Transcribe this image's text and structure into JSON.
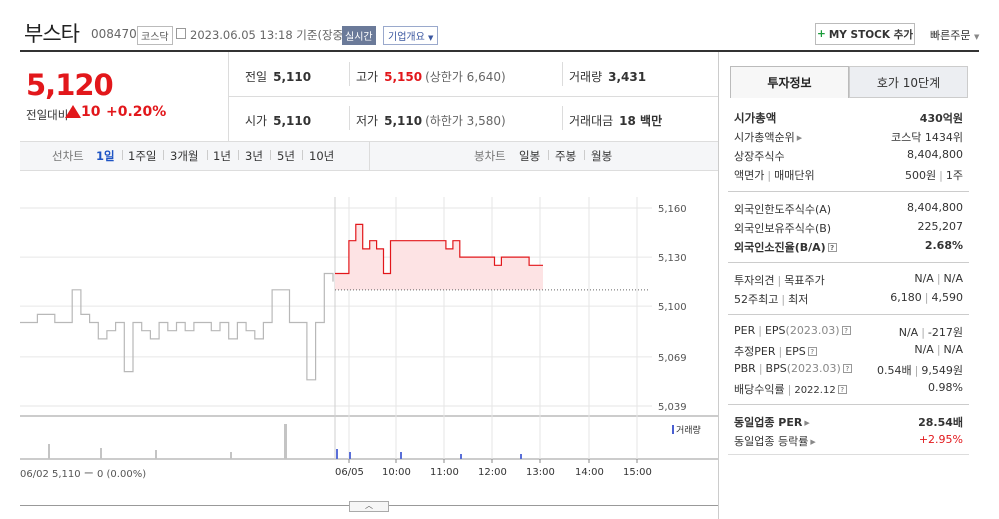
{
  "header": {
    "stock_name": "부스타",
    "stock_code": "008470",
    "market": "코스닥",
    "datetime": "2023.06.05 13:18 기준(장중)",
    "realtime_label": "실시간",
    "corp_info_label": "기업개요",
    "mystock_label": "MY STOCK 추가",
    "quick_order_label": "빠른주문"
  },
  "price": {
    "current": "5,120",
    "change_label": "전일대비",
    "change_value": "10",
    "change_pct": "+0.20%"
  },
  "quote": {
    "prev_label": "전일",
    "prev": "5,110",
    "high_label": "고가",
    "high": "5,150",
    "upper_limit": "(상한가 6,640)",
    "volume_label": "거래량",
    "volume": "3,431",
    "open_label": "시가",
    "open": "5,110",
    "low_label": "저가",
    "low": "5,110",
    "lower_limit": "(하한가 3,580)",
    "amount_label": "거래대금",
    "amount": "18 백만"
  },
  "toolbar": {
    "line_chart_label": "선차트",
    "periods": [
      "1일",
      "1주일",
      "3개월",
      "1년",
      "3년",
      "5년",
      "10년"
    ],
    "selected_period": "1일",
    "candle_label": "봉차트",
    "candle_periods": [
      "일봉",
      "주봉",
      "월봉"
    ]
  },
  "chart_data": {
    "type": "line",
    "title": "",
    "y_ticks": [
      "5,160",
      "5,130",
      "5,100",
      "5,069",
      "5,039"
    ],
    "ylim": [
      5039,
      5160
    ],
    "x_ticks": [
      "06/05",
      "10:00",
      "11:00",
      "12:00",
      "13:00",
      "14:00",
      "15:00"
    ],
    "volume_label": "거래량",
    "prev_day_label": "06/02 5,110 ー 0 (0.00%)",
    "prev_close": 5110,
    "prev_day_series": [
      5090,
      5090,
      5095,
      5095,
      5090,
      5090,
      5110,
      5095,
      5090,
      5080,
      5085,
      5090,
      5060,
      5090,
      5085,
      5080,
      5090,
      5085,
      5090,
      5085,
      5090,
      5090,
      5085,
      5090,
      5080,
      5090,
      5085,
      5080,
      5090,
      5110,
      5110,
      5090,
      5090,
      5055,
      5090,
      5120,
      5115
    ],
    "today_series": [
      5120,
      5120,
      5140,
      5150,
      5135,
      5140,
      5135,
      5120,
      5140,
      5140,
      5140,
      5140,
      5140,
      5140,
      5140,
      5140,
      5135,
      5140,
      5130,
      5130,
      5130,
      5130,
      5130,
      5125,
      5130,
      5130,
      5130,
      5130,
      5125,
      5125,
      5125
    ]
  },
  "info_panel": {
    "tab_invest": "투자정보",
    "tab_hoga": "호가 10단계",
    "rows1": [
      {
        "k": "시가총액",
        "v": "430억원"
      },
      {
        "k": "시가총액순위",
        "v": "코스닥 1434위"
      },
      {
        "k": "상장주식수",
        "v": "8,404,800"
      },
      {
        "k1": "액면가",
        "k2": "매매단위",
        "v1": "500원",
        "v2": "1주"
      }
    ],
    "rows2": [
      {
        "k": "외국인한도주식수(A)",
        "v": "8,404,800"
      },
      {
        "k": "외국인보유주식수(B)",
        "v": "225,207"
      },
      {
        "k": "외국인소진율(B/A)",
        "v": "2.68%"
      }
    ],
    "rows3": [
      {
        "k1": "투자의견",
        "k2": "목표주가",
        "v1": "N/A",
        "v2": "N/A"
      },
      {
        "k1": "52주최고",
        "k2": "최저",
        "v1": "6,180",
        "v2": "4,590"
      }
    ],
    "rows4": [
      {
        "k1": "PER",
        "k2": "EPS",
        "k2sub": "(2023.03)",
        "v1": "N/A",
        "v2": "-217원"
      },
      {
        "k1": "추정PER",
        "k2": "EPS",
        "v1": "N/A",
        "v2": "N/A"
      },
      {
        "k1": "PBR",
        "k2": "BPS",
        "k2sub": "(2023.03)",
        "v1": "0.54배",
        "v2": "9,549원"
      },
      {
        "k": "배당수익률",
        "ksub": "2022.12",
        "v": "0.98%"
      }
    ],
    "rows5": [
      {
        "k": "동일업종 PER",
        "v": "28.54배"
      },
      {
        "k": "동일업종 등락률",
        "v": "+2.95%"
      }
    ]
  }
}
